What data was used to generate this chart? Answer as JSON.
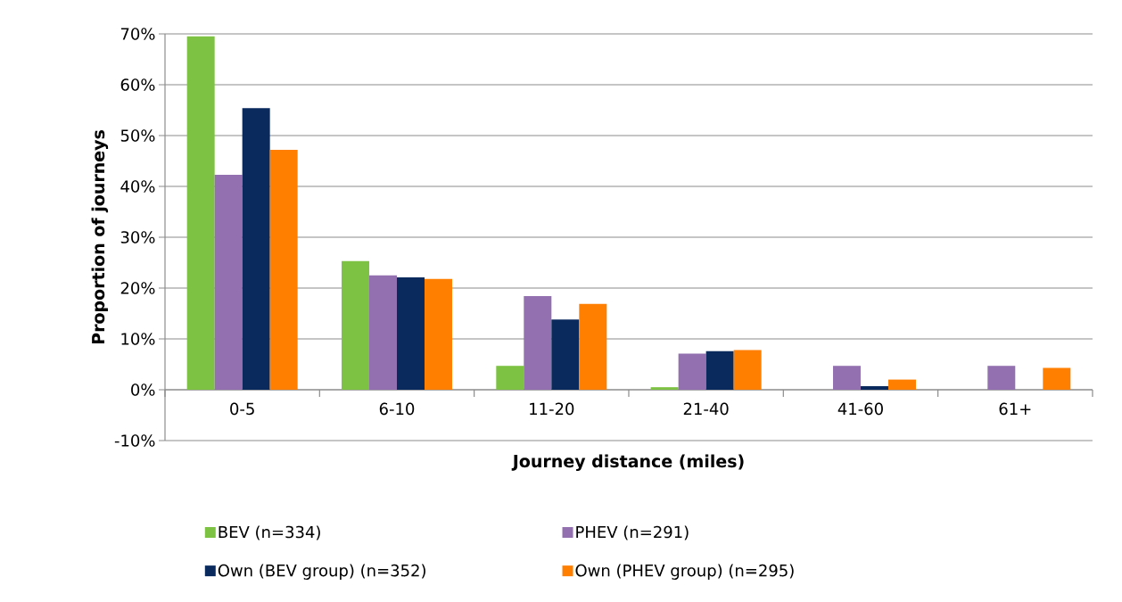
{
  "chart_data": {
    "type": "bar",
    "xlabel": "Journey distance (miles)",
    "ylabel": "Proportion of journeys",
    "categories": [
      "0-5",
      "6-10",
      "11-20",
      "21-40",
      "41-60",
      "61+"
    ],
    "series": [
      {
        "name": "BEV (n=334)",
        "color": "#7dc242",
        "values": [
          69.5,
          25.3,
          4.7,
          0.5,
          0,
          0
        ]
      },
      {
        "name": "PHEV (n=291)",
        "color": "#9370b0",
        "values": [
          42.3,
          22.5,
          18.4,
          7.1,
          4.7,
          4.7
        ]
      },
      {
        "name": "Own (BEV group) (n=352)",
        "color": "#0a2a5e",
        "values": [
          55.4,
          22.1,
          13.8,
          7.6,
          0.7,
          0
        ]
      },
      {
        "name": "Own (PHEV group) (n=295)",
        "color": "#ff7f00",
        "values": [
          47.2,
          21.8,
          16.9,
          7.8,
          2.0,
          4.3
        ]
      }
    ],
    "ylim": [
      -10,
      70
    ],
    "yticks": [
      {
        "value": -10,
        "label": "-10%"
      },
      {
        "value": 0,
        "label": "0%"
      },
      {
        "value": 10,
        "label": "10%"
      },
      {
        "value": 20,
        "label": "20%"
      },
      {
        "value": 30,
        "label": "30%"
      },
      {
        "value": 40,
        "label": "40%"
      },
      {
        "value": 50,
        "label": "50%"
      },
      {
        "value": 60,
        "label": "60%"
      },
      {
        "value": 70,
        "label": "70%"
      }
    ],
    "grid": "y",
    "legend": "bottom"
  }
}
